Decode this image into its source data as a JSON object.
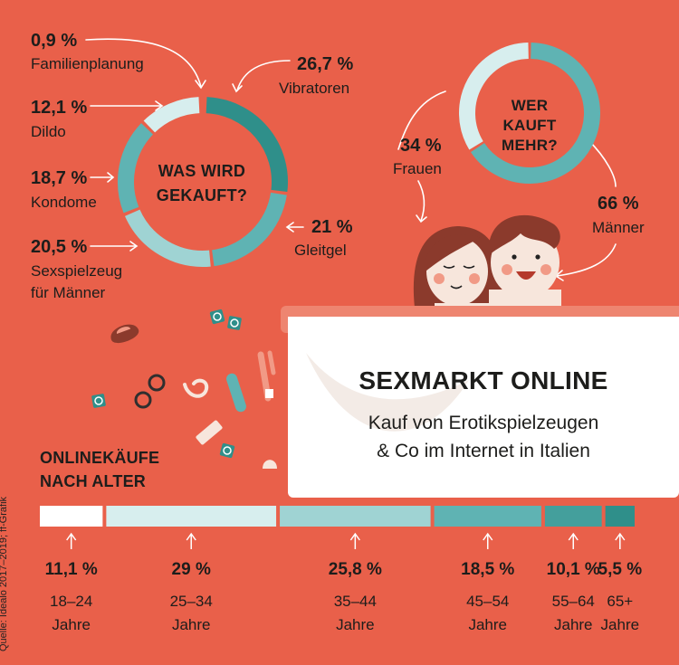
{
  "colors": {
    "bg": "#e9604a",
    "dark": "#2f8f8a",
    "teal": "#5fb3b3",
    "lightteal": "#9fd3d3",
    "pale": "#d7eeee",
    "white": "#ffffff",
    "rim": "#ee8570"
  },
  "title": {
    "main": "SEXMARKT ONLINE",
    "line1": "Kauf von Erotikspielzeugen",
    "line2": "& Co im Internet in Italien"
  },
  "source": "Quelle: Idealo 2017–2019; ff-Grafik",
  "chart_data": [
    {
      "type": "pie",
      "title_line1": "WAS WIRD",
      "title_line2": "GEKAUFT?",
      "slices": [
        {
          "label": "Vibratoren",
          "value": 26.7,
          "value_text": "26,7 %",
          "color": "#2f8f8a"
        },
        {
          "label": "Gleitgel",
          "value": 21,
          "value_text": "21 %",
          "color": "#5fb3b3"
        },
        {
          "label_line1": "Sexspielzeug",
          "label_line2": "für Männer",
          "value": 20.5,
          "value_text": "20,5 %",
          "color": "#9fd3d3"
        },
        {
          "label": "Kondome",
          "value": 18.7,
          "value_text": "18,7 %",
          "color": "#5fb3b3"
        },
        {
          "label": "Dildo",
          "value": 12.1,
          "value_text": "12,1 %",
          "color": "#d7eeee"
        },
        {
          "label": "Familienplanung",
          "value": 0.9,
          "value_text": "0,9 %",
          "color": "#e9604a"
        }
      ]
    },
    {
      "type": "pie",
      "title_line1": "WER",
      "title_line2": "KAUFT",
      "title_line3": "MEHR?",
      "slices": [
        {
          "label": "Männer",
          "value": 66,
          "value_text": "66 %",
          "color": "#5fb3b3"
        },
        {
          "label": "Frauen",
          "value": 34,
          "value_text": "34 %",
          "color": "#d7eeee"
        }
      ]
    },
    {
      "type": "bar",
      "title_line1": "ONLINEKÄUFE",
      "title_line2": "NACH ALTER",
      "categories": [
        "18–24",
        "25–34",
        "35–44",
        "45–54",
        "55–64",
        "65+"
      ],
      "unit": "Jahre",
      "values": [
        11.1,
        29,
        25.8,
        18.5,
        10.1,
        5.5
      ],
      "value_texts": [
        "11,1 %",
        "29 %",
        "25,8 %",
        "18,5 %",
        "10,1 %",
        "5,5 %"
      ],
      "colors": [
        "#ffffff",
        "#d7eeee",
        "#9fd3d3",
        "#5fb3b3",
        "#449f9c",
        "#2f8f8a"
      ]
    }
  ]
}
